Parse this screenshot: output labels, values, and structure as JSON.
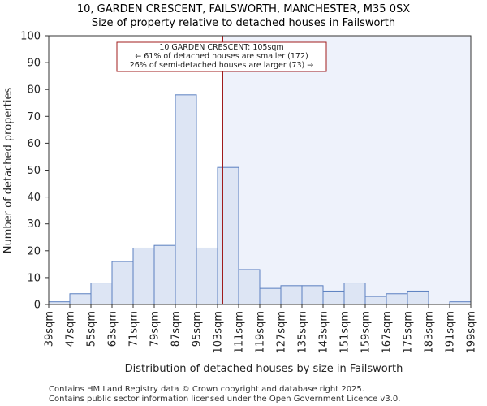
{
  "chart_data": {
    "type": "bar",
    "title": "10, GARDEN CRESCENT, FAILSWORTH, MANCHESTER, M35 0SX",
    "subtitle": "Size of property relative to detached houses in Failsworth",
    "xlabel": "Distribution of detached houses by size in Failsworth",
    "ylabel": "Number of detached properties",
    "ylim": [
      0,
      100
    ],
    "yticks": [
      0,
      10,
      20,
      30,
      40,
      50,
      60,
      70,
      80,
      90,
      100
    ],
    "xlim": [
      39,
      199
    ],
    "bin_width": 8,
    "xtick_labels": [
      "39sqm",
      "47sqm",
      "55sqm",
      "63sqm",
      "71sqm",
      "79sqm",
      "87sqm",
      "95sqm",
      "103sqm",
      "111sqm",
      "119sqm",
      "127sqm",
      "135sqm",
      "143sqm",
      "151sqm",
      "159sqm",
      "167sqm",
      "175sqm",
      "183sqm",
      "191sqm",
      "199sqm"
    ],
    "bin_starts": [
      39,
      47,
      55,
      63,
      71,
      79,
      87,
      95,
      103,
      111,
      119,
      127,
      135,
      143,
      151,
      159,
      167,
      175,
      183,
      191
    ],
    "values": [
      1,
      4,
      8,
      16,
      21,
      22,
      78,
      21,
      51,
      13,
      6,
      7,
      7,
      5,
      8,
      3,
      4,
      5,
      0,
      1
    ],
    "grid": false,
    "property_marker": {
      "value": 105,
      "label_lines": [
        "10 GARDEN CRESCENT: 105sqm",
        "← 61% of detached houses are smaller (172)",
        "26% of semi-detached houses are larger (73) →"
      ],
      "line_color": "#a01c1c"
    },
    "colors": {
      "bar_fill": "#dde5f4",
      "bar_stroke": "#5a7fc0",
      "highlight_region": "#eef2fb"
    }
  },
  "footer": {
    "line1": "Contains HM Land Registry data © Crown copyright and database right 2025.",
    "line2": "Contains public sector information licensed under the Open Government Licence v3.0."
  }
}
